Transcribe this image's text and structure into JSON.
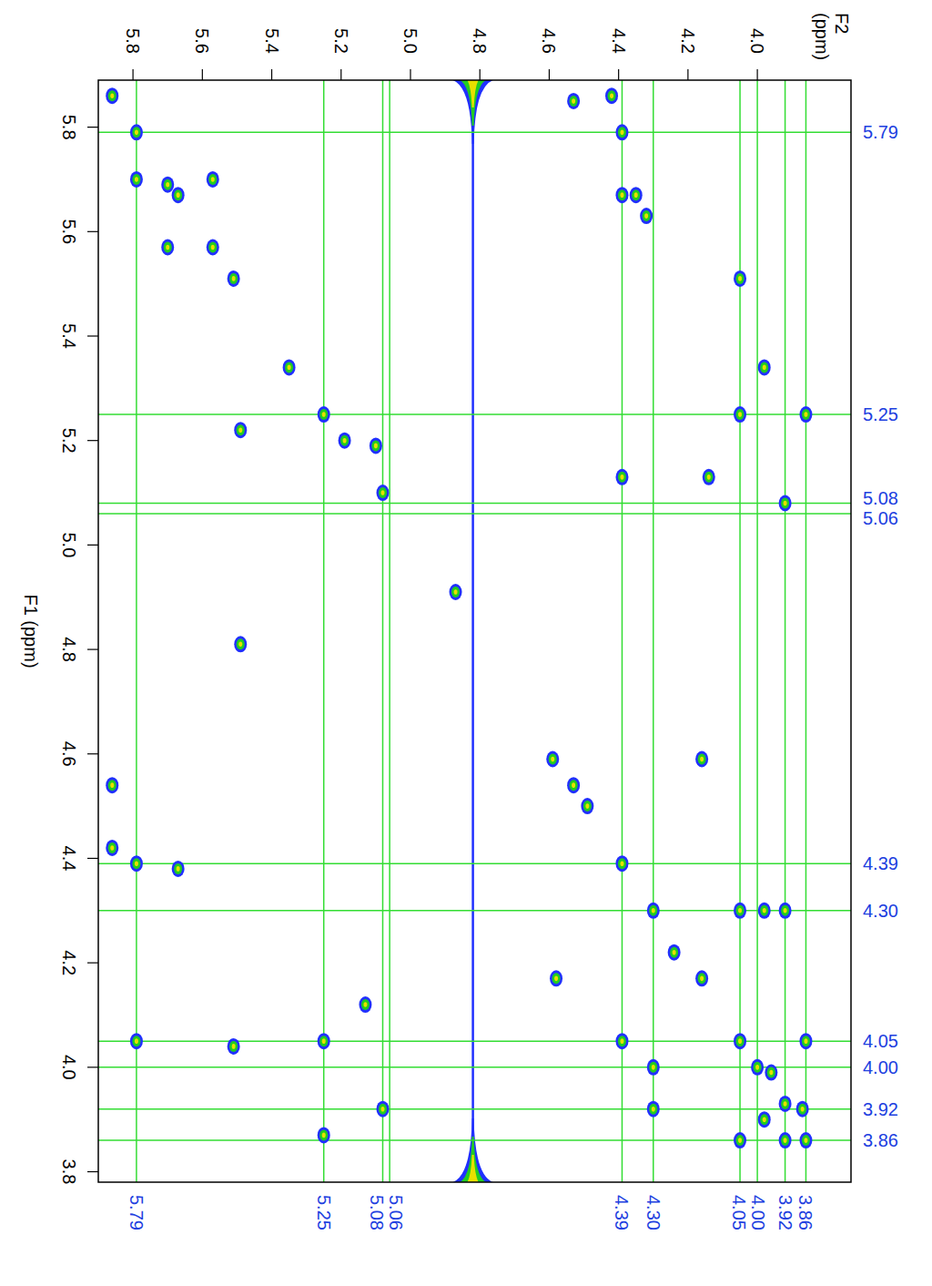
{
  "chart_data": {
    "type": "scatter",
    "x_label": "F2 (ppm)",
    "y_label": "F1 (ppm)",
    "xlim": [
      5.9,
      3.73
    ],
    "ylim": [
      5.89,
      3.78
    ],
    "xticks": [
      5.8,
      5.6,
      5.4,
      5.2,
      {
        "value": 5.0,
        "label": "5.0"
      },
      4.8,
      4.6,
      4.4,
      4.2,
      {
        "value": 4.0,
        "label": "4.0"
      }
    ],
    "yticks": [
      5.8,
      5.6,
      5.4,
      5.2,
      {
        "value": 5.0,
        "label": "5.0"
      },
      4.8,
      4.6,
      4.4,
      4.2,
      {
        "value": 4.0,
        "label": "4.0"
      },
      3.8
    ],
    "x": [
      5.86,
      5.79,
      5.79,
      5.7,
      5.67,
      5.57,
      5.7,
      5.57,
      5.51,
      5.35,
      5.25,
      5.19,
      5.1,
      5.08,
      5.49,
      5.49,
      4.53,
      4.42,
      4.39,
      4.39,
      4.35,
      4.32,
      4.05,
      3.98,
      4.05,
      3.92,
      3.86,
      4.14,
      4.39,
      4.87,
      4.59,
      4.53,
      4.49,
      4.16,
      5.86,
      5.86,
      5.79,
      5.67,
      4.39,
      4.3,
      4.05,
      3.98,
      3.92,
      4.24,
      4.16,
      4.58,
      5.13,
      5.79,
      5.51,
      5.25,
      4.39,
      4.3,
      4.3,
      4.05,
      3.86,
      4.0,
      3.96,
      5.08,
      3.92,
      3.87,
      5.25,
      4.05,
      3.92,
      3.86,
      3.98
    ],
    "values": [
      5.86,
      5.79,
      5.7,
      5.69,
      5.67,
      5.7,
      5.57,
      5.57,
      5.51,
      5.34,
      5.25,
      5.2,
      5.19,
      5.1,
      5.22,
      4.81,
      5.85,
      5.86,
      5.79,
      5.67,
      5.67,
      5.63,
      5.51,
      5.34,
      5.25,
      5.08,
      5.25,
      5.13,
      5.13,
      4.91,
      4.59,
      4.54,
      4.5,
      4.59,
      4.54,
      4.42,
      4.39,
      4.38,
      4.39,
      4.3,
      4.3,
      4.3,
      4.3,
      4.22,
      4.17,
      4.17,
      4.12,
      4.05,
      4.04,
      4.05,
      4.05,
      4.0,
      3.92,
      4.05,
      4.05,
      4.0,
      3.99,
      3.92,
      3.93,
      3.92,
      3.87,
      3.86,
      3.86,
      3.86,
      3.9
    ],
    "solvent_x": 4.82,
    "cursors": [
      {
        "value": 5.79,
        "label": "5.79"
      },
      {
        "value": 5.25,
        "label": "5.25"
      },
      {
        "value": 5.08,
        "label": "5.08"
      },
      {
        "value": 5.06,
        "label": "5.06"
      },
      {
        "value": 4.39,
        "label": "4.39"
      },
      {
        "value": 4.3,
        "label": "4.30"
      },
      {
        "value": 4.05,
        "label": "4.05"
      },
      {
        "value": 4.0,
        "label": "4.00"
      },
      {
        "value": 3.92,
        "label": "3.92"
      },
      {
        "value": 3.86,
        "label": "3.86"
      }
    ]
  }
}
